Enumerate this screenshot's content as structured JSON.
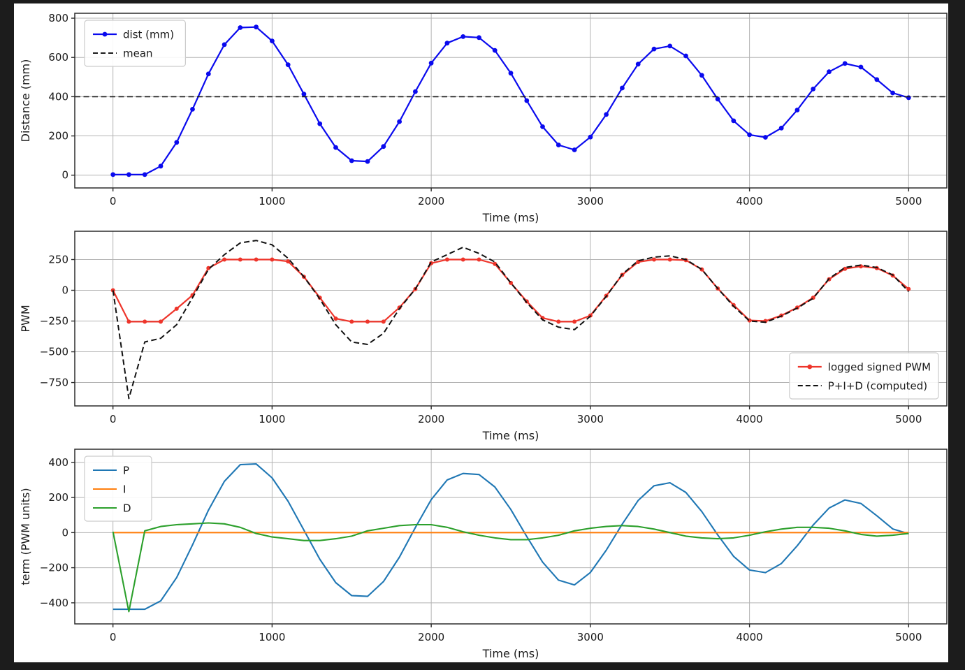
{
  "figure": {
    "background": "#1c1c1c",
    "face": "#ffffff",
    "grid_color": "#b3b3b3",
    "spine_color": "#2b2b2b",
    "text_color": "#1a1a1a"
  },
  "chart_data": [
    {
      "id": "distance",
      "type": "line",
      "title": "",
      "xlabel": "Time (ms)",
      "ylabel": "Distance (mm)",
      "xlim": [
        -240,
        5240
      ],
      "ylim": [
        -65,
        825
      ],
      "xticks": [
        0,
        1000,
        2000,
        3000,
        4000,
        5000
      ],
      "yticks": [
        0,
        200,
        400,
        600,
        800
      ],
      "grid": true,
      "legend": {
        "loc": "upper-left"
      },
      "x": [
        0,
        100,
        200,
        300,
        400,
        500,
        600,
        700,
        800,
        900,
        1000,
        1100,
        1200,
        1300,
        1400,
        1500,
        1600,
        1700,
        1800,
        1900,
        2000,
        2100,
        2200,
        2300,
        2400,
        2500,
        2600,
        2700,
        2800,
        2900,
        3000,
        3100,
        3200,
        3300,
        3400,
        3500,
        3600,
        3700,
        3800,
        3900,
        4000,
        4100,
        4200,
        4300,
        4400,
        4500,
        4600,
        4700,
        4800,
        4900,
        5000
      ],
      "series": [
        {
          "label": "dist (mm)",
          "color": "#0a0aee",
          "marker": true,
          "lw": 2.2,
          "values": [
            3,
            3,
            3,
            46,
            167,
            336,
            516,
            665,
            752,
            755,
            684,
            563,
            413,
            262,
            141,
            74,
            70,
            146,
            273,
            426,
            571,
            673,
            706,
            701,
            636,
            520,
            380,
            247,
            154,
            129,
            194,
            309,
            444,
            566,
            643,
            658,
            608,
            509,
            388,
            277,
            206,
            193,
            240,
            332,
            439,
            527,
            569,
            551,
            487,
            419,
            395
          ]
        },
        {
          "label": "mean",
          "color": "#1a1a1a",
          "dash": true,
          "lw": 1.6,
          "hline": 400
        }
      ]
    },
    {
      "id": "pwm",
      "type": "line",
      "title": "",
      "xlabel": "Time (ms)",
      "ylabel": "PWM",
      "xlim": [
        -240,
        5240
      ],
      "ylim": [
        -940,
        480
      ],
      "xticks": [
        0,
        1000,
        2000,
        3000,
        4000,
        5000
      ],
      "yticks": [
        250,
        0,
        -250,
        -500,
        -750
      ],
      "grid": true,
      "legend": {
        "loc": "lower-right"
      },
      "x": [
        0,
        100,
        200,
        300,
        400,
        500,
        600,
        700,
        800,
        900,
        1000,
        1100,
        1200,
        1300,
        1400,
        1500,
        1600,
        1700,
        1800,
        1900,
        2000,
        2100,
        2200,
        2300,
        2400,
        2500,
        2600,
        2700,
        2800,
        2900,
        3000,
        3100,
        3200,
        3300,
        3400,
        3500,
        3600,
        3700,
        3800,
        3900,
        4000,
        4100,
        4200,
        4300,
        4400,
        4500,
        4600,
        4700,
        4800,
        4900,
        5000
      ],
      "series": [
        {
          "label": "logged signed PWM",
          "color": "#ee352b",
          "marker": true,
          "lw": 2.2,
          "values": [
            0,
            -255,
            -255,
            -255,
            -150,
            -40,
            180,
            250,
            250,
            250,
            250,
            235,
            110,
            -60,
            -230,
            -255,
            -255,
            -255,
            -140,
            10,
            220,
            250,
            250,
            250,
            215,
            60,
            -90,
            -225,
            -255,
            -255,
            -205,
            -45,
            125,
            230,
            250,
            250,
            245,
            170,
            15,
            -120,
            -245,
            -250,
            -205,
            -140,
            -60,
            90,
            175,
            195,
            180,
            120,
            10
          ]
        },
        {
          "label": "P+I+D (computed)",
          "color": "#111111",
          "dash": true,
          "lw": 2,
          "values": [
            0,
            -880,
            -420,
            -390,
            -280,
            -60,
            170,
            290,
            385,
            405,
            370,
            260,
            110,
            -70,
            -280,
            -420,
            -440,
            -350,
            -150,
            10,
            230,
            290,
            350,
            300,
            230,
            60,
            -100,
            -240,
            -300,
            -320,
            -210,
            -50,
            130,
            240,
            270,
            280,
            250,
            170,
            15,
            -130,
            -250,
            -260,
            -210,
            -145,
            -65,
            95,
            185,
            205,
            185,
            125,
            -10
          ]
        }
      ]
    },
    {
      "id": "terms",
      "type": "line",
      "title": "",
      "xlabel": "Time (ms)",
      "ylabel": "term (PWM units)",
      "xlim": [
        -240,
        5240
      ],
      "ylim": [
        -520,
        475
      ],
      "xticks": [
        0,
        1000,
        2000,
        3000,
        4000,
        5000
      ],
      "yticks": [
        400,
        200,
        0,
        -200,
        -400
      ],
      "grid": true,
      "legend": {
        "loc": "upper-left"
      },
      "x": [
        0,
        100,
        200,
        300,
        400,
        500,
        600,
        700,
        800,
        900,
        1000,
        1100,
        1200,
        1300,
        1400,
        1500,
        1600,
        1700,
        1800,
        1900,
        2000,
        2100,
        2200,
        2300,
        2400,
        2500,
        2600,
        2700,
        2800,
        2900,
        3000,
        3100,
        3200,
        3300,
        3400,
        3500,
        3600,
        3700,
        3800,
        3900,
        4000,
        4100,
        4200,
        4300,
        4400,
        4500,
        4600,
        4700,
        4800,
        4900,
        5000
      ],
      "series": [
        {
          "label": "P",
          "color": "#1f77b4",
          "lw": 2.1,
          "values": [
            -437,
            -437,
            -437,
            -389,
            -256,
            -70,
            128,
            292,
            387,
            391,
            312,
            179,
            14,
            -152,
            -285,
            -359,
            -363,
            -279,
            -140,
            29,
            188,
            300,
            337,
            331,
            260,
            132,
            -22,
            -168,
            -271,
            -298,
            -227,
            -100,
            48,
            183,
            267,
            284,
            229,
            120,
            -13,
            -135,
            -213,
            -228,
            -176,
            -75,
            43,
            140,
            186,
            166,
            96,
            21,
            -6
          ]
        },
        {
          "label": "I",
          "color": "#ff7f0e",
          "lw": 2.1,
          "values": [
            0,
            0,
            0,
            0,
            0,
            0,
            0,
            0,
            0,
            0,
            0,
            0,
            0,
            0,
            0,
            0,
            0,
            0,
            0,
            0,
            0,
            0,
            0,
            0,
            0,
            0,
            0,
            0,
            0,
            0,
            0,
            0,
            0,
            0,
            0,
            0,
            0,
            0,
            0,
            0,
            0,
            0,
            0,
            0,
            0,
            0,
            0,
            0,
            0,
            0,
            0
          ]
        },
        {
          "label": "D",
          "color": "#2ca02c",
          "lw": 2.1,
          "values": [
            5,
            -450,
            10,
            35,
            45,
            50,
            55,
            50,
            30,
            -5,
            -25,
            -35,
            -45,
            -45,
            -35,
            -20,
            10,
            25,
            40,
            45,
            45,
            30,
            5,
            -15,
            -30,
            -40,
            -40,
            -30,
            -15,
            10,
            25,
            35,
            40,
            35,
            20,
            0,
            -20,
            -30,
            -35,
            -30,
            -15,
            5,
            20,
            30,
            30,
            25,
            10,
            -10,
            -20,
            -15,
            -5
          ]
        }
      ]
    }
  ]
}
